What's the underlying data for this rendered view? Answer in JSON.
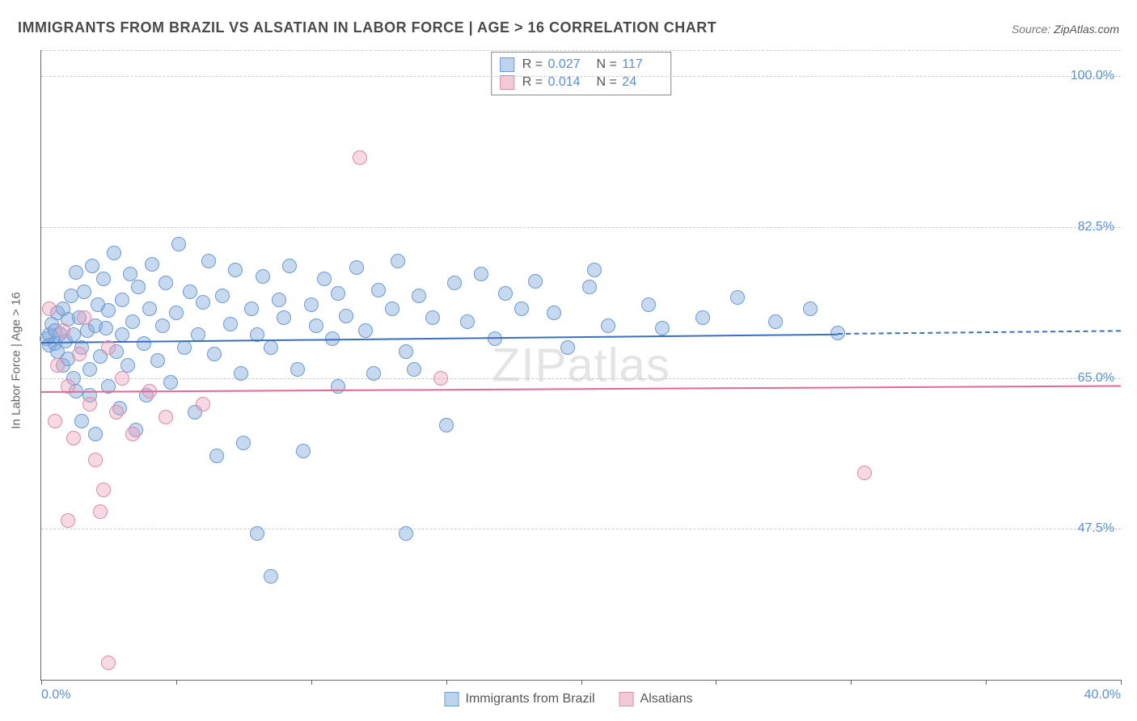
{
  "title": "IMMIGRANTS FROM BRAZIL VS ALSATIAN IN LABOR FORCE | AGE > 16 CORRELATION CHART",
  "source_label": "Source:",
  "source_value": "ZipAtlas.com",
  "watermark": "ZIPatlas",
  "y_axis_label": "In Labor Force | Age > 16",
  "x_axis": {
    "min": 0.0,
    "max": 40.0,
    "ticks": [
      0.0,
      5.0,
      10.0,
      15.0,
      20.0,
      25.0,
      30.0,
      35.0,
      40.0
    ],
    "tick_labels": [
      "0.0%",
      "",
      "",
      "",
      "",
      "",
      "",
      "",
      "40.0%"
    ],
    "label_color": "#5b8fd6",
    "label_fontsize": 16
  },
  "y_axis": {
    "min": 30.0,
    "max": 103.0,
    "gridlines": [
      47.5,
      65.0,
      82.5,
      100.0,
      103.0
    ],
    "tick_labels": {
      "47.5": "47.5%",
      "65.0": "65.0%",
      "82.5": "82.5%",
      "100.0": "100.0%"
    },
    "label_color": "#5b8fd6",
    "label_fontsize": 16,
    "grid_color": "#cccccc"
  },
  "series": [
    {
      "id": "brazil",
      "name": "Immigrants from Brazil",
      "marker_fill": "rgba(130,170,220,0.45)",
      "marker_stroke": "#6a9bd8",
      "marker_radius": 9,
      "swatch_fill": "#bcd4ee",
      "swatch_border": "#6a9bd8",
      "trend_color": "#3b6fc0",
      "trend": {
        "y_at_x0": 69.2,
        "y_at_xmax": 70.5,
        "solid_until_x": 29.5
      },
      "R": "0.027",
      "N": "117",
      "points": [
        [
          0.2,
          69.5
        ],
        [
          0.3,
          70.0
        ],
        [
          0.3,
          68.8
        ],
        [
          0.4,
          71.2
        ],
        [
          0.5,
          69.0
        ],
        [
          0.5,
          70.5
        ],
        [
          0.6,
          68.0
        ],
        [
          0.6,
          72.5
        ],
        [
          0.7,
          70.1
        ],
        [
          0.8,
          66.5
        ],
        [
          0.8,
          73.0
        ],
        [
          0.9,
          69.3
        ],
        [
          1.0,
          71.8
        ],
        [
          1.0,
          67.2
        ],
        [
          1.1,
          74.5
        ],
        [
          1.2,
          70.0
        ],
        [
          1.2,
          65.0
        ],
        [
          1.3,
          63.5
        ],
        [
          1.3,
          77.2
        ],
        [
          1.4,
          72.0
        ],
        [
          1.5,
          68.5
        ],
        [
          1.5,
          60.0
        ],
        [
          1.6,
          75.0
        ],
        [
          1.7,
          70.5
        ],
        [
          1.8,
          66.0
        ],
        [
          1.8,
          63.0
        ],
        [
          1.9,
          78.0
        ],
        [
          2.0,
          71.0
        ],
        [
          2.0,
          58.5
        ],
        [
          2.1,
          73.5
        ],
        [
          2.2,
          67.5
        ],
        [
          2.3,
          76.5
        ],
        [
          2.4,
          70.8
        ],
        [
          2.5,
          64.0
        ],
        [
          2.5,
          72.8
        ],
        [
          2.7,
          79.5
        ],
        [
          2.8,
          68.0
        ],
        [
          2.9,
          61.5
        ],
        [
          3.0,
          74.0
        ],
        [
          3.0,
          70.0
        ],
        [
          3.2,
          66.5
        ],
        [
          3.3,
          77.0
        ],
        [
          3.4,
          71.5
        ],
        [
          3.5,
          59.0
        ],
        [
          3.6,
          75.5
        ],
        [
          3.8,
          69.0
        ],
        [
          3.9,
          63.0
        ],
        [
          4.0,
          73.0
        ],
        [
          4.1,
          78.2
        ],
        [
          4.3,
          67.0
        ],
        [
          4.5,
          71.0
        ],
        [
          4.6,
          76.0
        ],
        [
          4.8,
          64.5
        ],
        [
          5.0,
          72.5
        ],
        [
          5.1,
          80.5
        ],
        [
          5.3,
          68.5
        ],
        [
          5.5,
          75.0
        ],
        [
          5.7,
          61.0
        ],
        [
          5.8,
          70.0
        ],
        [
          6.0,
          73.8
        ],
        [
          6.2,
          78.5
        ],
        [
          6.4,
          67.8
        ],
        [
          6.5,
          56.0
        ],
        [
          6.7,
          74.5
        ],
        [
          7.0,
          71.2
        ],
        [
          7.2,
          77.5
        ],
        [
          7.4,
          65.5
        ],
        [
          7.5,
          57.5
        ],
        [
          7.8,
          73.0
        ],
        [
          8.0,
          70.0
        ],
        [
          8.0,
          47.0
        ],
        [
          8.2,
          76.8
        ],
        [
          8.5,
          68.5
        ],
        [
          8.5,
          42.0
        ],
        [
          8.8,
          74.0
        ],
        [
          9.0,
          72.0
        ],
        [
          9.2,
          78.0
        ],
        [
          9.5,
          66.0
        ],
        [
          9.7,
          56.5
        ],
        [
          10.0,
          73.5
        ],
        [
          10.2,
          71.0
        ],
        [
          10.5,
          76.5
        ],
        [
          10.8,
          69.5
        ],
        [
          11.0,
          74.8
        ],
        [
          11.0,
          64.0
        ],
        [
          11.3,
          72.2
        ],
        [
          11.7,
          77.8
        ],
        [
          12.0,
          70.5
        ],
        [
          12.3,
          65.5
        ],
        [
          12.5,
          75.2
        ],
        [
          13.0,
          73.0
        ],
        [
          13.2,
          78.5
        ],
        [
          13.5,
          68.0
        ],
        [
          13.5,
          47.0
        ],
        [
          13.8,
          66.0
        ],
        [
          14.0,
          74.5
        ],
        [
          14.5,
          72.0
        ],
        [
          15.0,
          59.5
        ],
        [
          15.3,
          76.0
        ],
        [
          15.8,
          71.5
        ],
        [
          16.3,
          77.0
        ],
        [
          16.8,
          69.5
        ],
        [
          17.2,
          74.8
        ],
        [
          17.8,
          73.0
        ],
        [
          18.3,
          76.2
        ],
        [
          19.0,
          72.5
        ],
        [
          19.5,
          68.5
        ],
        [
          20.3,
          75.5
        ],
        [
          20.5,
          77.5
        ],
        [
          21.0,
          71.0
        ],
        [
          22.5,
          73.5
        ],
        [
          23.0,
          70.8
        ],
        [
          24.5,
          72.0
        ],
        [
          25.8,
          74.3
        ],
        [
          27.2,
          71.5
        ],
        [
          28.5,
          73.0
        ],
        [
          29.5,
          70.2
        ]
      ]
    },
    {
      "id": "alsatian",
      "name": "Alsatians",
      "marker_fill": "rgba(235,160,185,0.40)",
      "marker_stroke": "#e08aa8",
      "marker_radius": 9,
      "swatch_fill": "#f4c9d7",
      "swatch_border": "#e08aa8",
      "trend_color": "#e06a95",
      "trend": {
        "y_at_x0": 63.5,
        "y_at_xmax": 64.2,
        "solid_until_x": 40.0
      },
      "R": "0.014",
      "N": "24",
      "points": [
        [
          0.3,
          73.0
        ],
        [
          0.5,
          60.0
        ],
        [
          0.6,
          66.5
        ],
        [
          0.8,
          70.5
        ],
        [
          1.0,
          64.0
        ],
        [
          1.0,
          48.5
        ],
        [
          1.2,
          58.0
        ],
        [
          1.4,
          67.8
        ],
        [
          1.6,
          72.0
        ],
        [
          1.8,
          62.0
        ],
        [
          2.0,
          55.5
        ],
        [
          2.2,
          49.5
        ],
        [
          2.3,
          52.0
        ],
        [
          2.5,
          68.5
        ],
        [
          2.5,
          32.0
        ],
        [
          2.8,
          61.0
        ],
        [
          3.0,
          65.0
        ],
        [
          3.4,
          58.5
        ],
        [
          4.0,
          63.5
        ],
        [
          4.6,
          60.5
        ],
        [
          6.0,
          62.0
        ],
        [
          11.8,
          90.5
        ],
        [
          14.8,
          65.0
        ],
        [
          30.5,
          54.0
        ]
      ]
    }
  ],
  "stats_legend": {
    "border_color": "#888888",
    "bg": "#ffffff",
    "R_label": "R =",
    "N_label": "N =",
    "value_color": "#5b8fd6",
    "label_color": "#555555",
    "fontsize": 16
  },
  "bottom_legend": {
    "fontsize": 16,
    "text_color": "#555555"
  },
  "colors": {
    "title": "#4a4a4a",
    "axis_line": "#666666",
    "background": "#ffffff"
  }
}
